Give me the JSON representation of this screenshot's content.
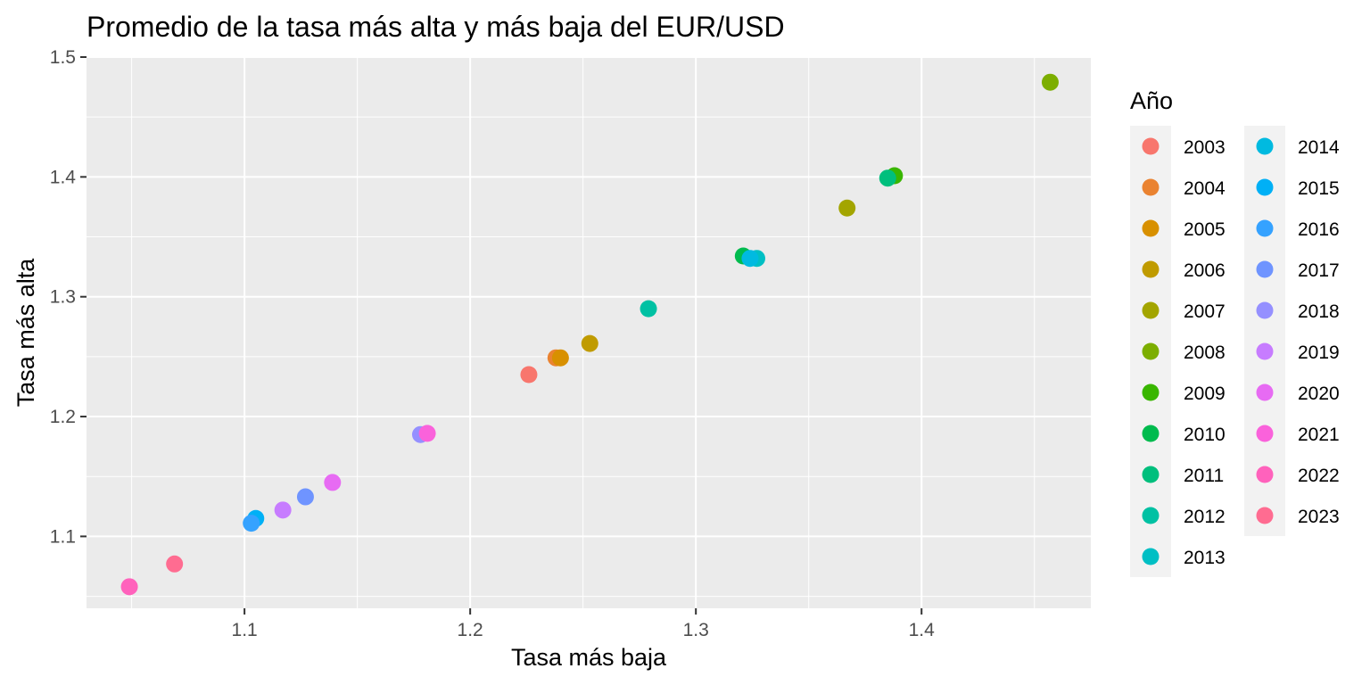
{
  "chart_data": {
    "type": "scatter",
    "title": "Promedio de la tasa más alta y más baja del EUR/USD",
    "xlabel": "Tasa más baja",
    "ylabel": "Tasa más alta",
    "xlim": [
      1.03,
      1.475
    ],
    "ylim": [
      1.04,
      1.5
    ],
    "x_ticks": [
      "1.1",
      "1.2",
      "1.3",
      "1.4"
    ],
    "y_ticks": [
      "1.1",
      "1.2",
      "1.3",
      "1.4",
      "1.5"
    ],
    "grid": true,
    "legend_title": "Año",
    "legend_position": "right",
    "series": [
      {
        "name": "2003",
        "color": "#F8766D",
        "x": 1.226,
        "y": 1.235
      },
      {
        "name": "2004",
        "color": "#EA8331",
        "x": 1.238,
        "y": 1.249
      },
      {
        "name": "2005",
        "color": "#D89000",
        "x": 1.24,
        "y": 1.249
      },
      {
        "name": "2006",
        "color": "#C09B00",
        "x": 1.253,
        "y": 1.261
      },
      {
        "name": "2007",
        "color": "#A3A500",
        "x": 1.367,
        "y": 1.374
      },
      {
        "name": "2008",
        "color": "#7CAE00",
        "x": 1.457,
        "y": 1.479
      },
      {
        "name": "2009",
        "color": "#39B600",
        "x": 1.388,
        "y": 1.401
      },
      {
        "name": "2010",
        "color": "#00BB4E",
        "x": 1.321,
        "y": 1.334
      },
      {
        "name": "2011",
        "color": "#00BF7D",
        "x": 1.385,
        "y": 1.399
      },
      {
        "name": "2012",
        "color": "#00C1A3",
        "x": 1.279,
        "y": 1.29
      },
      {
        "name": "2013",
        "color": "#00BFC4",
        "x": 1.327,
        "y": 1.332
      },
      {
        "name": "2014",
        "color": "#00BAE0",
        "x": 1.324,
        "y": 1.332
      },
      {
        "name": "2015",
        "color": "#00B0F6",
        "x": 1.105,
        "y": 1.115
      },
      {
        "name": "2016",
        "color": "#35A2FF",
        "x": 1.103,
        "y": 1.111
      },
      {
        "name": "2017",
        "color": "#6F94FF",
        "x": 1.127,
        "y": 1.133
      },
      {
        "name": "2018",
        "color": "#9590FF",
        "x": 1.178,
        "y": 1.185
      },
      {
        "name": "2019",
        "color": "#C77CFF",
        "x": 1.117,
        "y": 1.122
      },
      {
        "name": "2020",
        "color": "#E76BF3",
        "x": 1.139,
        "y": 1.145
      },
      {
        "name": "2021",
        "color": "#FA62DB",
        "x": 1.181,
        "y": 1.186
      },
      {
        "name": "2022",
        "color": "#FF62BC",
        "x": 1.049,
        "y": 1.058
      },
      {
        "name": "2023",
        "color": "#FF6C91",
        "x": 1.069,
        "y": 1.077
      }
    ]
  }
}
